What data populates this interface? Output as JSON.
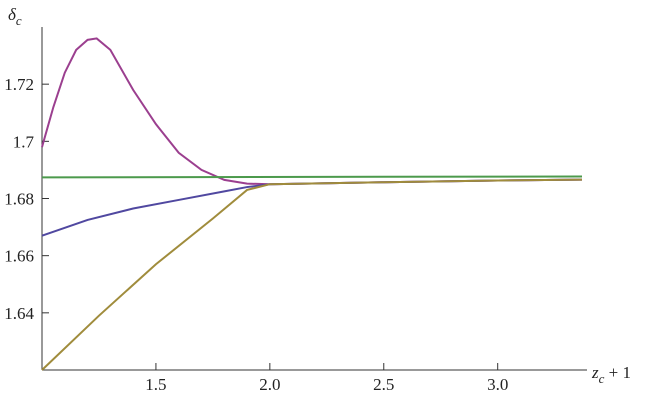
{
  "chart_data": {
    "type": "line",
    "y_label": {
      "base": "δ",
      "sub": "c"
    },
    "x_label": {
      "base": "z",
      "sub": "c",
      "rest": " + 1"
    },
    "xlim": [
      1,
      3.37
    ],
    "ylim": [
      1.62,
      1.74
    ],
    "xticks": [
      1.5,
      {
        "value": 2,
        "label": "2.0"
      },
      2.5,
      {
        "value": 3,
        "label": "3.0"
      }
    ],
    "yticks": [
      1.64,
      1.66,
      1.68,
      1.7,
      1.72
    ],
    "series": [
      {
        "color": "#9b3f8f",
        "x": [
          1,
          1.05,
          1.1,
          1.15,
          1.2,
          1.24,
          1.3,
          1.4,
          1.5,
          1.6,
          1.7,
          1.8,
          1.9,
          2.0,
          2.5,
          3.0,
          3.37
        ],
        "values": [
          1.698,
          1.712,
          1.724,
          1.732,
          1.7355,
          1.736,
          1.732,
          1.718,
          1.706,
          1.696,
          1.69,
          1.6865,
          1.6852,
          1.685,
          1.6857,
          1.6863,
          1.6866
        ]
      },
      {
        "color": "#5048a0",
        "x": [
          1,
          1.2,
          1.4,
          1.6,
          1.8,
          1.9,
          2.0,
          2.5,
          3.0,
          3.37
        ],
        "values": [
          1.667,
          1.6725,
          1.6765,
          1.6795,
          1.6825,
          1.684,
          1.685,
          1.6857,
          1.6863,
          1.6866
        ]
      },
      {
        "color": "#a08c3c",
        "x": [
          1,
          1.25,
          1.5,
          1.75,
          1.9,
          2.0,
          2.5,
          3.0,
          3.37
        ],
        "values": [
          1.62,
          1.639,
          1.657,
          1.673,
          1.683,
          1.685,
          1.6857,
          1.6863,
          1.6866
        ]
      },
      {
        "color": "#4c9a4c",
        "x": [
          1,
          3.37
        ],
        "values": [
          1.6874,
          1.6877
        ]
      }
    ]
  }
}
